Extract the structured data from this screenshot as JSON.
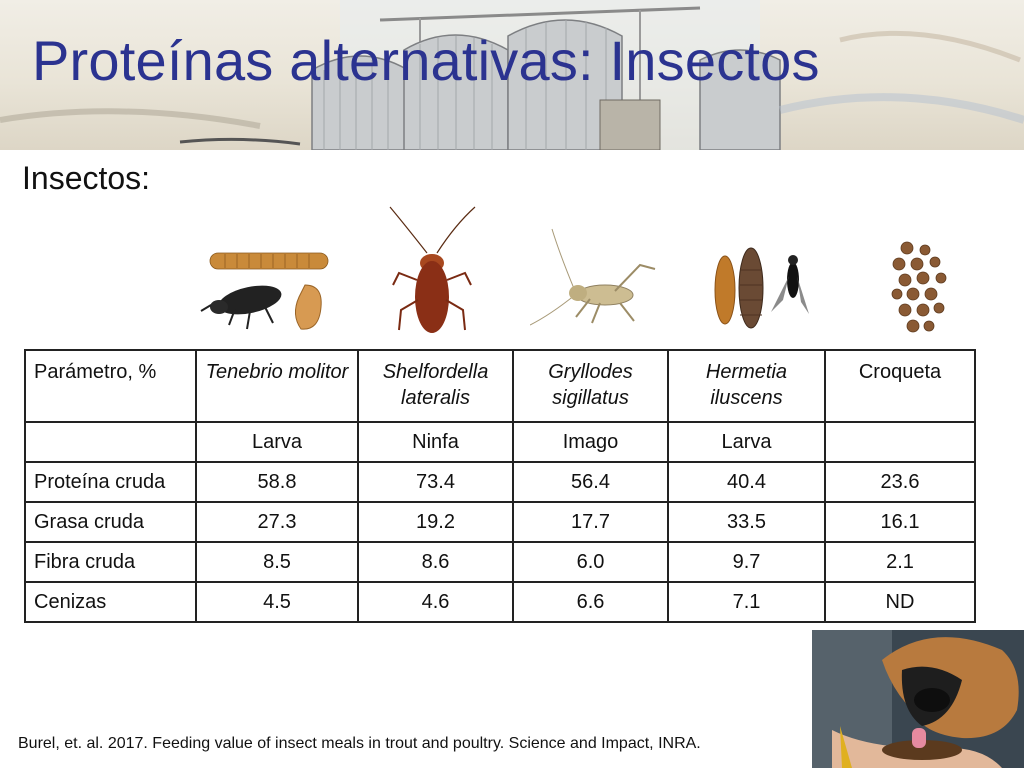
{
  "slide": {
    "title": "Proteínas alternativas: Insectos",
    "subtitle": "Insectos:",
    "citation": "Burel, et. al. 2017. Feeding value of insect meals in trout and poultry. Science and Impact, INRA."
  },
  "images": [
    {
      "icon": "mealworm-beetle-icon"
    },
    {
      "icon": "cockroach-icon"
    },
    {
      "icon": "cricket-icon"
    },
    {
      "icon": "soldier-fly-icon"
    },
    {
      "icon": "kibble-icon"
    }
  ],
  "table": {
    "header_first": "Parámetro, %",
    "columns": [
      {
        "name": "Tenebrio molitor",
        "stage": "Larva"
      },
      {
        "name": "Shelfordella lateralis",
        "stage": "Ninfa"
      },
      {
        "name": "Gryllodes sigillatus",
        "stage": "Imago"
      },
      {
        "name": "Hermetia iluscens",
        "stage": "Larva"
      },
      {
        "name": "Croqueta",
        "stage": ""
      }
    ],
    "rows": [
      {
        "label": "Proteína cruda",
        "values": [
          "58.8",
          "73.4",
          "56.4",
          "40.4",
          "23.6"
        ]
      },
      {
        "label": "Grasa cruda",
        "values": [
          "27.3",
          "19.2",
          "17.7",
          "33.5",
          "16.1"
        ]
      },
      {
        "label": "Fibra cruda",
        "values": [
          "8.5",
          "8.6",
          "6.0",
          "9.7",
          "2.1"
        ]
      },
      {
        "label": "Cenizas",
        "values": [
          "4.5",
          "4.6",
          "6.6",
          "7.1",
          "ND"
        ]
      }
    ]
  },
  "colors": {
    "title": "#2b3390"
  }
}
